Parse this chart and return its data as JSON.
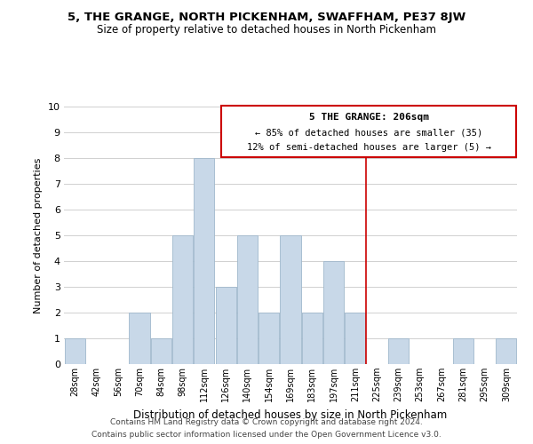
{
  "title": "5, THE GRANGE, NORTH PICKENHAM, SWAFFHAM, PE37 8JW",
  "subtitle": "Size of property relative to detached houses in North Pickenham",
  "xlabel": "Distribution of detached houses by size in North Pickenham",
  "ylabel": "Number of detached properties",
  "bar_color": "#c8d8e8",
  "bar_edge_color": "#a0b8cc",
  "bins": [
    "28sqm",
    "42sqm",
    "56sqm",
    "70sqm",
    "84sqm",
    "98sqm",
    "112sqm",
    "126sqm",
    "140sqm",
    "154sqm",
    "169sqm",
    "183sqm",
    "197sqm",
    "211sqm",
    "225sqm",
    "239sqm",
    "253sqm",
    "267sqm",
    "281sqm",
    "295sqm",
    "309sqm"
  ],
  "values": [
    1,
    0,
    0,
    2,
    1,
    5,
    8,
    3,
    5,
    2,
    5,
    2,
    4,
    2,
    0,
    1,
    0,
    0,
    1,
    0,
    1
  ],
  "ylim": [
    0,
    10
  ],
  "yticks": [
    0,
    1,
    2,
    3,
    4,
    5,
    6,
    7,
    8,
    9,
    10
  ],
  "vline_x": 13.5,
  "vline_color": "#cc0000",
  "annotation_title": "5 THE GRANGE: 206sqm",
  "annotation_line1": "← 85% of detached houses are smaller (35)",
  "annotation_line2": "12% of semi-detached houses are larger (5) →",
  "annotation_box_color": "#ffffff",
  "annotation_box_edge": "#cc0000",
  "footer1": "Contains HM Land Registry data © Crown copyright and database right 2024.",
  "footer2": "Contains public sector information licensed under the Open Government Licence v3.0.",
  "background_color": "#ffffff",
  "grid_color": "#d0d0d0"
}
